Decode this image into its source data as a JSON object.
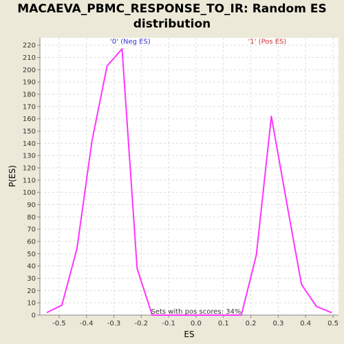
{
  "chart_data": {
    "type": "line",
    "title": "MACAEVA_PBMC_RESPONSE_TO_IR: Random ES distribution",
    "xlabel": "ES",
    "ylabel": "P(ES)",
    "xlim": [
      -0.57,
      0.52
    ],
    "ylim": [
      0,
      226
    ],
    "xticks": [
      -0.5,
      -0.4,
      -0.3,
      -0.2,
      -0.1,
      0.0,
      0.1,
      0.2,
      0.3,
      0.4,
      0.5
    ],
    "xtick_labels": [
      "-0.5",
      "-0.4",
      "-0.3",
      "-0.2",
      "-0.1",
      "0.0",
      "0.1",
      "0.2",
      "0.3",
      "0.4",
      "0.5"
    ],
    "yticks": [
      0,
      10,
      20,
      30,
      40,
      50,
      60,
      70,
      80,
      90,
      100,
      110,
      120,
      130,
      140,
      150,
      160,
      170,
      180,
      190,
      200,
      210,
      220
    ],
    "ytick_labels": [
      "0",
      "10",
      "20",
      "30",
      "40",
      "50",
      "60",
      "70",
      "80",
      "90",
      "100",
      "110",
      "120",
      "130",
      "140",
      "150",
      "160",
      "170",
      "180",
      "190",
      "200",
      "210",
      "220"
    ],
    "grid": true,
    "series": [
      {
        "color": "#ff33ff",
        "x": [
          -0.545,
          -0.49,
          -0.435,
          -0.38,
          -0.325,
          -0.27,
          -0.215,
          -0.16,
          0.165,
          0.22,
          0.275,
          0.33,
          0.385,
          0.44,
          0.495
        ],
        "y": [
          2,
          8,
          54,
          142,
          203,
          217,
          38,
          0,
          0,
          49,
          162,
          93,
          25,
          7,
          2
        ]
      }
    ],
    "annotations": [
      {
        "text": "'0' (Neg ES)",
        "x": -0.24,
        "y": 220,
        "color": "#3333cc"
      },
      {
        "text": "'1' (Pos ES)",
        "x": 0.26,
        "y": 220,
        "color": "#cc3333"
      },
      {
        "text": "Sets with pos scores: 34%",
        "x": 0.0,
        "y": 0,
        "color": "#333333"
      }
    ]
  }
}
